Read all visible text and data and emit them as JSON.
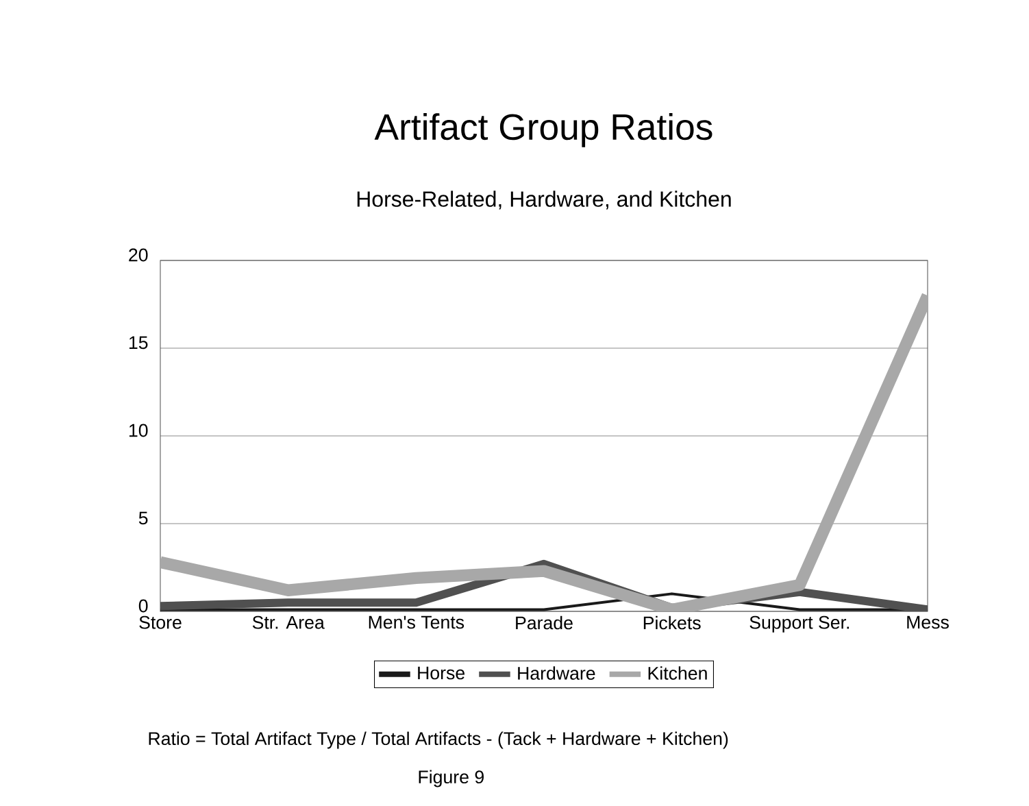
{
  "chart_data": {
    "type": "line",
    "title": "Artifact Group Ratios",
    "subtitle": "Horse-Related, Hardware, and Kitchen",
    "categories": [
      "Store",
      "Str. Area",
      "Men's Tents",
      "Parade",
      "Pickets",
      "Support Ser.",
      "Mess"
    ],
    "series": [
      {
        "name": "Horse",
        "color": "#1a1a1a",
        "values": [
          0.1,
          0.1,
          0.1,
          0.1,
          1.0,
          0.1,
          0.1
        ]
      },
      {
        "name": "Hardware",
        "color": "#505050",
        "values": [
          0.3,
          0.5,
          0.5,
          2.7,
          0.2,
          1.1,
          0.1
        ]
      },
      {
        "name": "Kitchen",
        "color": "#a8a8a8",
        "values": [
          2.8,
          1.2,
          1.9,
          2.3,
          0.1,
          1.5,
          18
        ]
      }
    ],
    "ylim": [
      0,
      20
    ],
    "yticks": [
      0,
      5,
      10,
      15,
      20
    ],
    "grid": "y",
    "legend": "bottom",
    "marker": "none",
    "line_style": "solid",
    "annotations": [
      "Ratio = Total Artifact Type / Total Artifacts - (Tack + Hardware + Kitchen)",
      "Figure 9"
    ]
  }
}
